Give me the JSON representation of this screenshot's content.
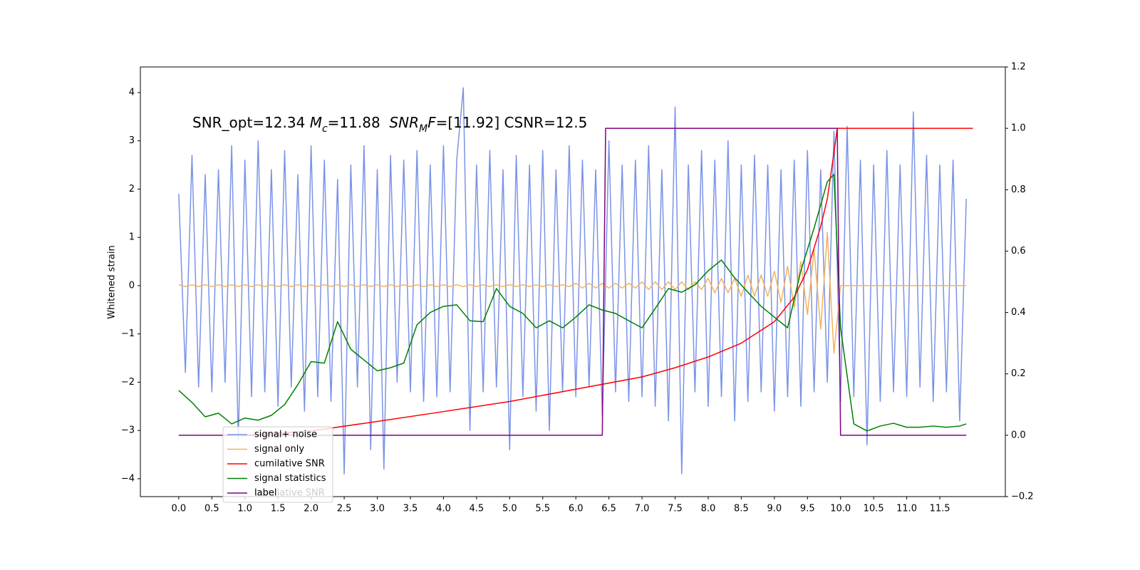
{
  "chart_data": {
    "type": "line",
    "ylabel": "Whitened strain",
    "annotation": {
      "parts": [
        {
          "text": "SNR_opt=12.34 "
        },
        {
          "text": "M",
          "italic": true
        },
        {
          "text": "c",
          "italic": true,
          "sub": true
        },
        {
          "text": "=11.88  "
        },
        {
          "text": "SNR",
          "italic": true
        },
        {
          "text": "M",
          "italic": true,
          "sub": true
        },
        {
          "text": "F",
          "italic": true
        },
        {
          "text": "=[11.92] CSNR=12.5"
        }
      ]
    },
    "xlim": [
      -0.58,
      12.49
    ],
    "xticks": [
      {
        "value": 0,
        "label": "0.0"
      },
      0.5,
      {
        "value": 1,
        "label": "1.0"
      },
      1.5,
      {
        "value": 2,
        "label": "2.0"
      },
      2.5,
      {
        "value": 3,
        "label": "3.0"
      },
      3.5,
      {
        "value": 4,
        "label": "4.0"
      },
      4.5,
      {
        "value": 5,
        "label": "5.0"
      },
      5.5,
      {
        "value": 6,
        "label": "6.0"
      },
      6.5,
      {
        "value": 7,
        "label": "7.0"
      },
      7.5,
      {
        "value": 8,
        "label": "8.0"
      },
      8.5,
      {
        "value": 9,
        "label": "9.0"
      },
      9.5,
      {
        "value": 10,
        "label": "10.0"
      },
      10.5,
      {
        "value": 11,
        "label": "11.0"
      },
      11.5
    ],
    "ylim": [
      -4.37,
      4.53
    ],
    "yticks": [
      {
        "value": -4,
        "label": "−4"
      },
      {
        "value": -3,
        "label": "−3"
      },
      {
        "value": -2,
        "label": "−2"
      },
      {
        "value": -1,
        "label": "−1"
      },
      0,
      1,
      2,
      3,
      4
    ],
    "y2lim": [
      -0.2,
      1.2
    ],
    "y2ticks": [
      {
        "value": -0.2,
        "label": "−0.2"
      },
      {
        "value": 0,
        "label": "0.0"
      },
      0.2,
      0.4,
      0.6,
      0.8,
      {
        "value": 1,
        "label": "1.0"
      },
      1.2
    ],
    "second_legend": {
      "entries": [
        "cumilative SNR"
      ]
    },
    "series": [
      {
        "name": "signal+ noise",
        "color": "#7b93e6",
        "x": [
          0,
          0.1,
          0.2,
          0.3,
          0.4,
          0.5,
          0.6,
          0.7,
          0.8,
          0.9,
          1,
          1.1,
          1.2,
          1.3,
          1.4,
          1.5,
          1.6,
          1.7,
          1.8,
          1.9,
          2,
          2.1,
          2.2,
          2.3,
          2.4,
          2.5,
          2.6,
          2.7,
          2.8,
          2.9,
          3,
          3.1,
          3.2,
          3.3,
          3.4,
          3.5,
          3.6,
          3.7,
          3.8,
          3.9,
          4,
          4.1,
          4.2,
          4.3,
          4.4,
          4.5,
          4.6,
          4.7,
          4.8,
          4.9,
          5,
          5.1,
          5.2,
          5.3,
          5.4,
          5.5,
          5.6,
          5.7,
          5.8,
          5.9,
          6,
          6.1,
          6.2,
          6.3,
          6.4,
          6.5,
          6.6,
          6.7,
          6.8,
          6.9,
          7,
          7.1,
          7.2,
          7.3,
          7.4,
          7.5,
          7.6,
          7.7,
          7.8,
          7.9,
          8,
          8.1,
          8.2,
          8.3,
          8.4,
          8.5,
          8.6,
          8.7,
          8.8,
          8.9,
          9,
          9.1,
          9.2,
          9.3,
          9.4,
          9.5,
          9.6,
          9.7,
          9.8,
          9.9,
          10,
          10.1,
          10.2,
          10.3,
          10.4,
          10.5,
          10.6,
          10.7,
          10.8,
          10.9,
          11,
          11.1,
          11.2,
          11.3,
          11.4,
          11.5,
          11.6,
          11.7,
          11.8,
          11.9
        ],
        "values": [
          1.9,
          -1.8,
          2.7,
          -2.1,
          2.3,
          -2.2,
          2.4,
          -2.0,
          2.9,
          -3.2,
          2.6,
          -2.3,
          3.0,
          -2.2,
          2.4,
          -2.5,
          2.8,
          -2.1,
          2.3,
          -2.6,
          2.9,
          -2.3,
          2.6,
          -2.4,
          2.2,
          -3.9,
          2.5,
          -2.1,
          2.9,
          -3.4,
          2.4,
          -3.8,
          2.7,
          -2.0,
          2.6,
          -2.2,
          2.8,
          -2.4,
          2.5,
          -2.3,
          2.9,
          -2.2,
          2.6,
          4.1,
          -3.0,
          2.5,
          -2.2,
          2.8,
          -2.1,
          2.4,
          -3.4,
          2.7,
          -2.3,
          2.5,
          -2.6,
          2.8,
          -3.0,
          2.4,
          -2.2,
          2.9,
          -2.3,
          2.6,
          -2.1,
          2.4,
          -2.7,
          3.0,
          -2.2,
          2.5,
          -2.4,
          2.6,
          -2.3,
          2.9,
          -2.5,
          2.4,
          -2.8,
          3.7,
          -3.9,
          2.5,
          -2.2,
          2.8,
          -2.5,
          2.6,
          -2.3,
          3.0,
          -2.8,
          2.5,
          -2.4,
          2.7,
          -2.2,
          2.5,
          -2.6,
          2.4,
          -2.3,
          2.6,
          -2.5,
          2.8,
          -2.2,
          2.4,
          -2.0,
          3.2,
          -2.4,
          3.3,
          -2.3,
          2.6,
          -3.3,
          2.5,
          -2.4,
          2.8,
          -2.2,
          2.5,
          -2.3,
          3.6,
          -2.1,
          2.7,
          -2.4,
          2.5,
          -2.2,
          2.6,
          -2.8,
          1.8
        ]
      },
      {
        "name": "signal only",
        "color": "#f2b35c",
        "x": [
          0,
          0.1,
          0.2,
          0.3,
          0.4,
          0.5,
          0.6,
          0.7,
          0.8,
          0.9,
          1,
          1.1,
          1.2,
          1.3,
          1.4,
          1.5,
          1.6,
          1.7,
          1.8,
          1.9,
          2,
          2.1,
          2.2,
          2.3,
          2.4,
          2.5,
          2.6,
          2.7,
          2.8,
          2.9,
          3,
          3.1,
          3.2,
          3.3,
          3.4,
          3.5,
          3.6,
          3.7,
          3.8,
          3.9,
          4,
          4.1,
          4.2,
          4.3,
          4.4,
          4.5,
          4.6,
          4.7,
          4.8,
          4.9,
          5,
          5.1,
          5.2,
          5.3,
          5.4,
          5.5,
          5.6,
          5.7,
          5.8,
          5.9,
          6,
          6.1,
          6.2,
          6.3,
          6.4,
          6.5,
          6.6,
          6.7,
          6.8,
          6.9,
          7,
          7.1,
          7.2,
          7.3,
          7.4,
          7.5,
          7.6,
          7.7,
          7.8,
          7.9,
          8,
          8.1,
          8.2,
          8.3,
          8.4,
          8.5,
          8.6,
          8.7,
          8.8,
          8.9,
          9,
          9.1,
          9.2,
          9.3,
          9.4,
          9.5,
          9.6,
          9.7,
          9.8,
          9.9,
          10,
          10.1,
          10.2,
          10.3,
          10.4,
          10.5,
          10.6,
          10.7,
          10.8,
          10.9,
          11,
          11.1,
          11.2,
          11.3,
          11.4,
          11.5,
          11.6,
          11.7,
          11.8,
          11.9
        ],
        "values": [
          0.02,
          -0.02,
          0.02,
          -0.02,
          0.02,
          -0.02,
          0.02,
          -0.02,
          0.02,
          -0.02,
          0.02,
          -0.02,
          0.02,
          -0.02,
          0.02,
          -0.02,
          0.02,
          -0.02,
          0.02,
          -0.02,
          0.02,
          -0.02,
          0.02,
          -0.02,
          0.02,
          -0.02,
          0.02,
          -0.02,
          0.02,
          -0.02,
          0.02,
          -0.02,
          0.02,
          -0.02,
          0.02,
          -0.02,
          0.02,
          -0.02,
          0.02,
          -0.02,
          0.02,
          -0.02,
          0.02,
          -0.02,
          0.02,
          -0.02,
          0.02,
          -0.02,
          0.02,
          -0.02,
          0.02,
          -0.02,
          0.02,
          -0.02,
          0.02,
          -0.02,
          0.02,
          -0.02,
          0.02,
          -0.02,
          0.05,
          -0.05,
          0.05,
          -0.05,
          0.05,
          -0.05,
          0.05,
          -0.05,
          0.05,
          -0.05,
          0.08,
          -0.08,
          0.08,
          -0.08,
          0.08,
          -0.08,
          0.08,
          -0.08,
          0.08,
          -0.08,
          0.15,
          -0.15,
          0.15,
          -0.15,
          0.15,
          -0.22,
          0.22,
          -0.22,
          0.22,
          -0.22,
          0.3,
          -0.35,
          0.4,
          -0.45,
          0.5,
          -0.6,
          0.75,
          -0.9,
          1.1,
          -1.4,
          0,
          0,
          0,
          0,
          0,
          0,
          0,
          0,
          0,
          0,
          0,
          0,
          0,
          0,
          0,
          0,
          0,
          0,
          0,
          0
        ]
      },
      {
        "name": "cumilative SNR",
        "color": "#ff0000",
        "axis": "y2",
        "x": [
          1.0,
          2,
          3,
          4,
          5,
          6,
          7,
          7.5,
          8,
          8.5,
          9,
          9.3,
          9.5,
          9.7,
          9.8,
          9.9,
          9.95,
          12.0
        ],
        "values": [
          0,
          0.014,
          0.045,
          0.077,
          0.11,
          0.15,
          0.19,
          0.22,
          0.255,
          0.3,
          0.37,
          0.45,
          0.54,
          0.68,
          0.77,
          0.92,
          1.0,
          1.0
        ]
      },
      {
        "name": "signal statistics",
        "color": "#008000",
        "axis": "y2",
        "x": [
          0,
          0.2,
          0.4,
          0.6,
          0.8,
          1.0,
          1.2,
          1.4,
          1.6,
          1.8,
          2.0,
          2.2,
          2.4,
          2.6,
          2.8,
          3.0,
          3.2,
          3.4,
          3.6,
          3.8,
          4.0,
          4.2,
          4.4,
          4.6,
          4.8,
          5.0,
          5.2,
          5.4,
          5.6,
          5.8,
          6.0,
          6.2,
          6.4,
          6.6,
          6.8,
          7.0,
          7.2,
          7.4,
          7.6,
          7.8,
          8.0,
          8.2,
          8.4,
          8.6,
          8.8,
          9.0,
          9.2,
          9.4,
          9.6,
          9.8,
          9.9,
          10.0,
          10.2,
          10.4,
          10.6,
          10.8,
          11.0,
          11.2,
          11.4,
          11.6,
          11.8,
          11.9
        ],
        "values": [
          0.146,
          0.107,
          0.06,
          0.072,
          0.037,
          0.056,
          0.049,
          0.065,
          0.1,
          0.165,
          0.24,
          0.235,
          0.37,
          0.28,
          0.245,
          0.21,
          0.22,
          0.235,
          0.36,
          0.4,
          0.42,
          0.425,
          0.373,
          0.37,
          0.478,
          0.42,
          0.397,
          0.35,
          0.373,
          0.35,
          0.385,
          0.425,
          0.408,
          0.397,
          0.373,
          0.35,
          0.413,
          0.478,
          0.466,
          0.49,
          0.536,
          0.571,
          0.513,
          0.466,
          0.42,
          0.385,
          0.35,
          0.536,
          0.675,
          0.826,
          0.85,
          0.35,
          0.037,
          0.014,
          0.03,
          0.039,
          0.026,
          0.026,
          0.03,
          0.026,
          0.03,
          0.037
        ]
      },
      {
        "name": "label",
        "color": "#800080",
        "axis": "y2",
        "x": [
          0,
          6.4,
          6.45,
          9.95,
          10.0,
          11.9
        ],
        "values": [
          0,
          0,
          1,
          1,
          0,
          0
        ]
      }
    ]
  }
}
